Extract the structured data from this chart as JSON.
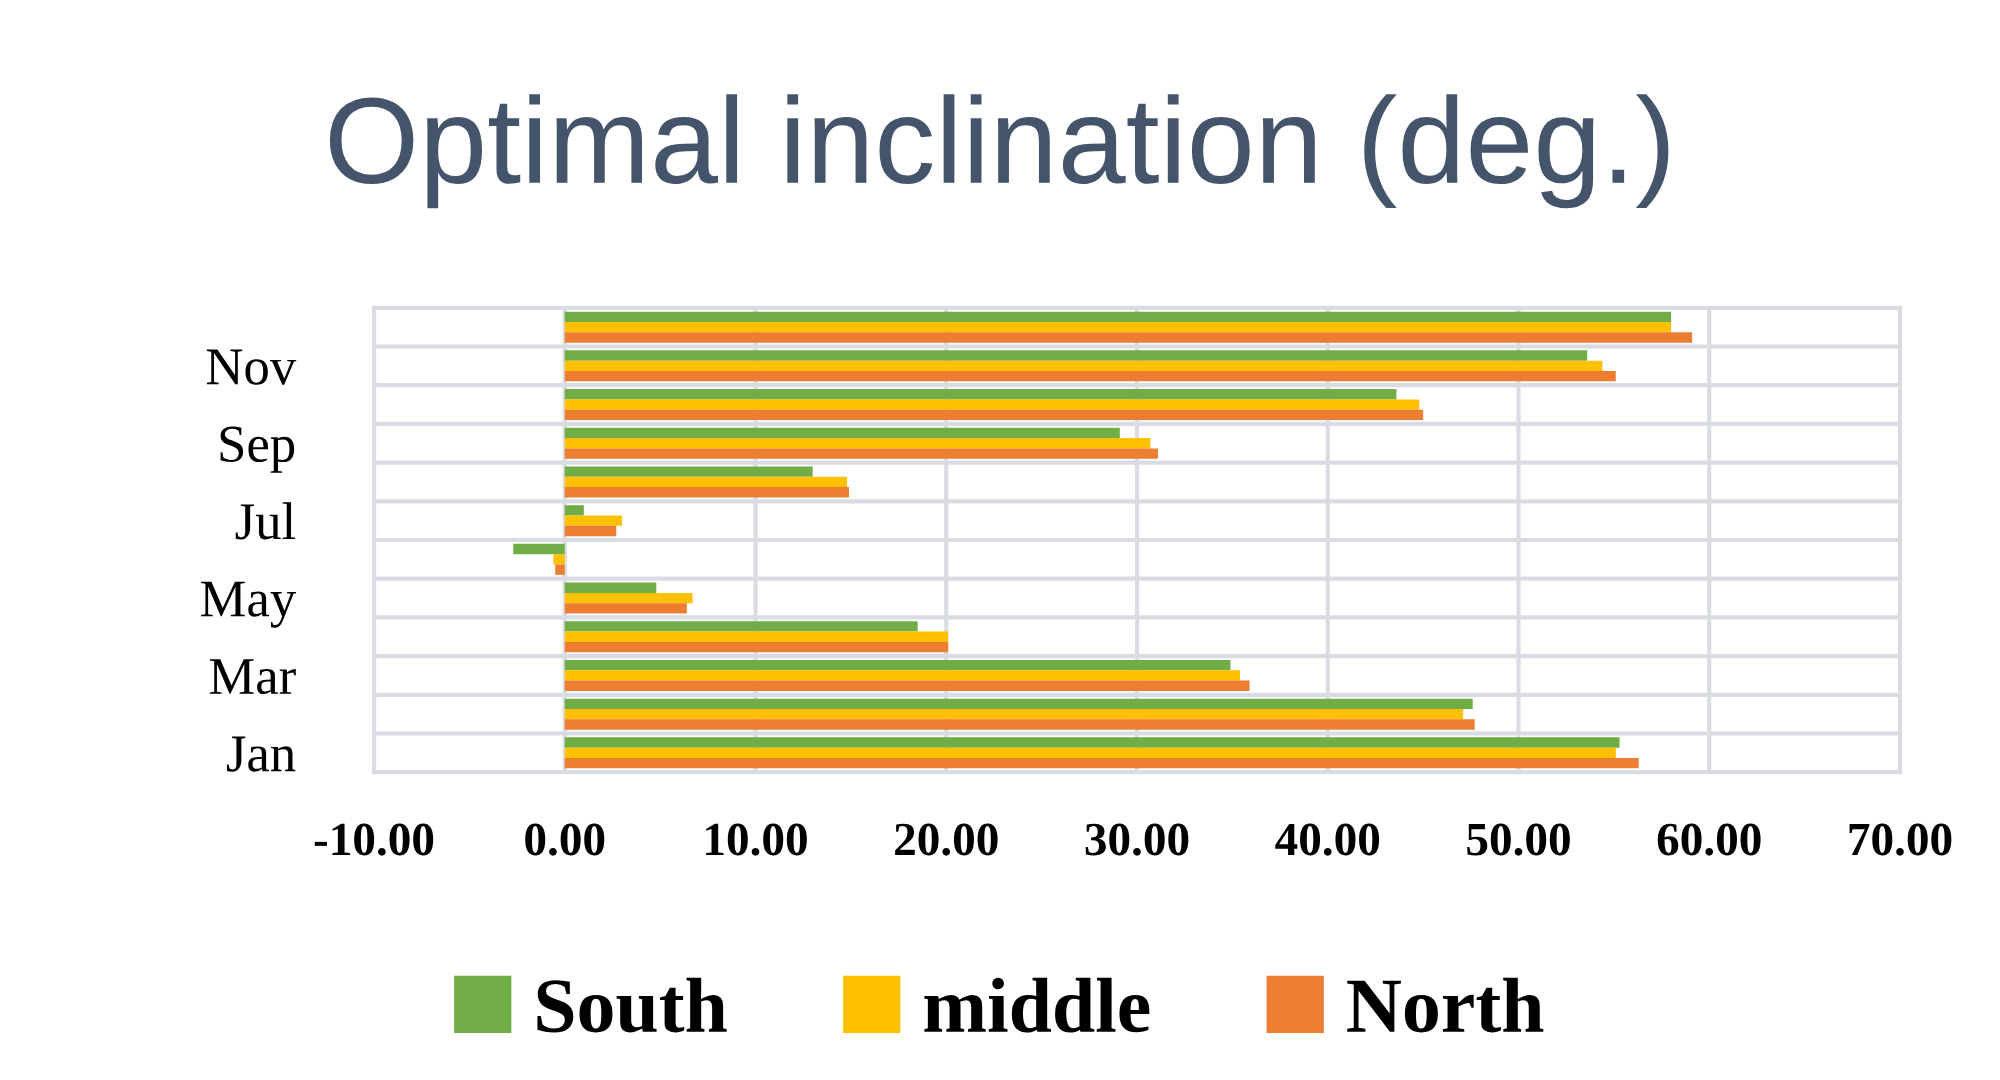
{
  "chart_data": {
    "type": "bar",
    "orientation": "horizontal",
    "title": "Optimal inclination (deg.)",
    "categories": [
      null,
      "Nov",
      null,
      "Sep",
      null,
      "Jul",
      null,
      "May",
      null,
      "Mar",
      null,
      "Jan"
    ],
    "series": [
      {
        "name": "South",
        "color": "#70ad47",
        "values": [
          58.0,
          53.6,
          43.6,
          29.1,
          13.0,
          1.0,
          -2.7,
          4.8,
          18.5,
          34.9,
          47.6,
          55.3
        ]
      },
      {
        "name": "middle",
        "color": "#ffc000",
        "values": [
          58.0,
          54.4,
          44.8,
          30.7,
          14.8,
          3.0,
          -0.6,
          6.7,
          20.1,
          35.4,
          47.1,
          55.1
        ]
      },
      {
        "name": "North",
        "color": "#ed7d31",
        "values": [
          59.1,
          55.1,
          45.0,
          31.1,
          14.9,
          2.7,
          -0.5,
          6.4,
          20.1,
          35.9,
          47.7,
          56.3
        ]
      }
    ],
    "xlim": [
      -10,
      70
    ],
    "xticks": [
      {
        "value": -10,
        "label": "-10.00"
      },
      {
        "value": 0,
        "label": "0.00"
      },
      {
        "value": 10,
        "label": "10.00"
      },
      {
        "value": 20,
        "label": "20.00"
      },
      {
        "value": 30,
        "label": "30.00"
      },
      {
        "value": 40,
        "label": "40.00"
      },
      {
        "value": 50,
        "label": "50.00"
      },
      {
        "value": 60,
        "label": "60.00"
      },
      {
        "value": 70,
        "label": "70.00"
      }
    ],
    "grid": true,
    "legend": "bottom"
  }
}
